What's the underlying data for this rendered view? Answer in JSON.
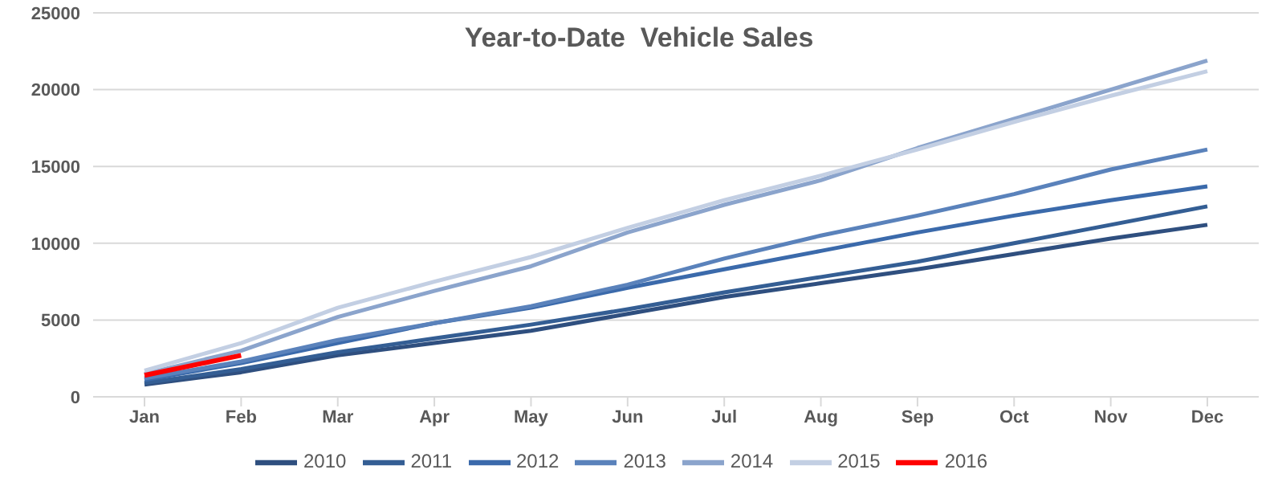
{
  "chart_data": {
    "type": "line",
    "title": "Year-to-Date  Vehicle Sales",
    "categories": [
      "Jan",
      "Feb",
      "Mar",
      "Apr",
      "May",
      "Jun",
      "Jul",
      "Aug",
      "Sep",
      "Oct",
      "Nov",
      "Dec"
    ],
    "series": [
      {
        "name": "2010",
        "color": "#2f4f7f",
        "values": [
          800,
          1600,
          2700,
          3500,
          4300,
          5400,
          6500,
          7400,
          8300,
          9300,
          10300,
          11200
        ]
      },
      {
        "name": "2011",
        "color": "#345e94",
        "values": [
          900,
          1800,
          2900,
          3800,
          4700,
          5700,
          6800,
          7800,
          8800,
          10000,
          11200,
          12400
        ]
      },
      {
        "name": "2012",
        "color": "#3b6aab",
        "values": [
          1100,
          2200,
          3500,
          4800,
          5800,
          7100,
          8300,
          9500,
          10700,
          11800,
          12800,
          13700
        ]
      },
      {
        "name": "2013",
        "color": "#5a82bb",
        "values": [
          1200,
          2300,
          3700,
          4800,
          5900,
          7300,
          9000,
          10500,
          11800,
          13200,
          14800,
          16100
        ]
      },
      {
        "name": "2014",
        "color": "#8ba4cc",
        "values": [
          1500,
          3000,
          5200,
          6900,
          8500,
          10700,
          12500,
          14100,
          16200,
          18100,
          20000,
          21900
        ]
      },
      {
        "name": "2015",
        "color": "#c3cfe3",
        "values": [
          1700,
          3500,
          5800,
          7500,
          9100,
          11000,
          12800,
          14400,
          16100,
          17900,
          19600,
          21200
        ]
      },
      {
        "name": "2016",
        "color": "#ff0000",
        "values": [
          1400,
          2700,
          null,
          null,
          null,
          null,
          null,
          null,
          null,
          null,
          null,
          null
        ]
      }
    ],
    "ylim": [
      0,
      25000
    ],
    "yticks": [
      0,
      5000,
      10000,
      15000,
      20000,
      25000
    ],
    "grid": "y",
    "legend": "bottom",
    "marker": "none",
    "line_style": "solid"
  }
}
